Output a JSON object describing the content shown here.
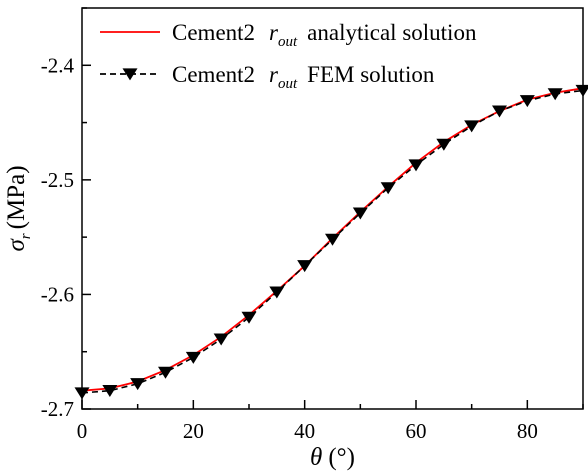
{
  "chart_data": {
    "type": "line",
    "title": "",
    "xlabel": {
      "symbol": "θ",
      "unit": "(°)"
    },
    "ylabel": {
      "symbol": "σ",
      "subscript": "r",
      "unit": "(MPa)"
    },
    "xlim": [
      0,
      90
    ],
    "ylim": [
      -2.7,
      -2.35
    ],
    "xticks": [
      0,
      20,
      40,
      60,
      80
    ],
    "xtick_labels": [
      "0",
      "20",
      "40",
      "60",
      "80"
    ],
    "yticks": [
      -2.7,
      -2.6,
      -2.5,
      -2.4
    ],
    "ytick_labels": [
      "-2.7",
      "-2.6",
      "-2.5",
      "-2.4"
    ],
    "grid": false,
    "legend_position": "top",
    "series": [
      {
        "name": {
          "prefix": "Cement2",
          "symbol": "r",
          "subscript": "out",
          "suffix": "analytical solution"
        },
        "style": "solid",
        "color": "#ff0000",
        "x": [
          0,
          5,
          10,
          15,
          20,
          25,
          30,
          35,
          40,
          45,
          50,
          55,
          60,
          65,
          70,
          75,
          80,
          85,
          90
        ],
        "y": [
          -2.684,
          -2.682,
          -2.676,
          -2.666,
          -2.653,
          -2.637,
          -2.618,
          -2.597,
          -2.575,
          -2.551,
          -2.528,
          -2.506,
          -2.485,
          -2.467,
          -2.452,
          -2.44,
          -2.43,
          -2.424,
          -2.42
        ]
      },
      {
        "name": {
          "prefix": "Cement2",
          "symbol": "r",
          "subscript": "out",
          "suffix": "FEM solution"
        },
        "style": "dashed",
        "marker": "triangle-down",
        "color": "#000000",
        "x": [
          0,
          5,
          10,
          15,
          20,
          25,
          30,
          35,
          40,
          45,
          50,
          55,
          60,
          65,
          70,
          75,
          80,
          85,
          90
        ],
        "y": [
          -2.686,
          -2.684,
          -2.678,
          -2.668,
          -2.655,
          -2.639,
          -2.62,
          -2.598,
          -2.575,
          -2.552,
          -2.529,
          -2.507,
          -2.487,
          -2.469,
          -2.453,
          -2.44,
          -2.431,
          -2.425,
          -2.422
        ]
      }
    ]
  }
}
